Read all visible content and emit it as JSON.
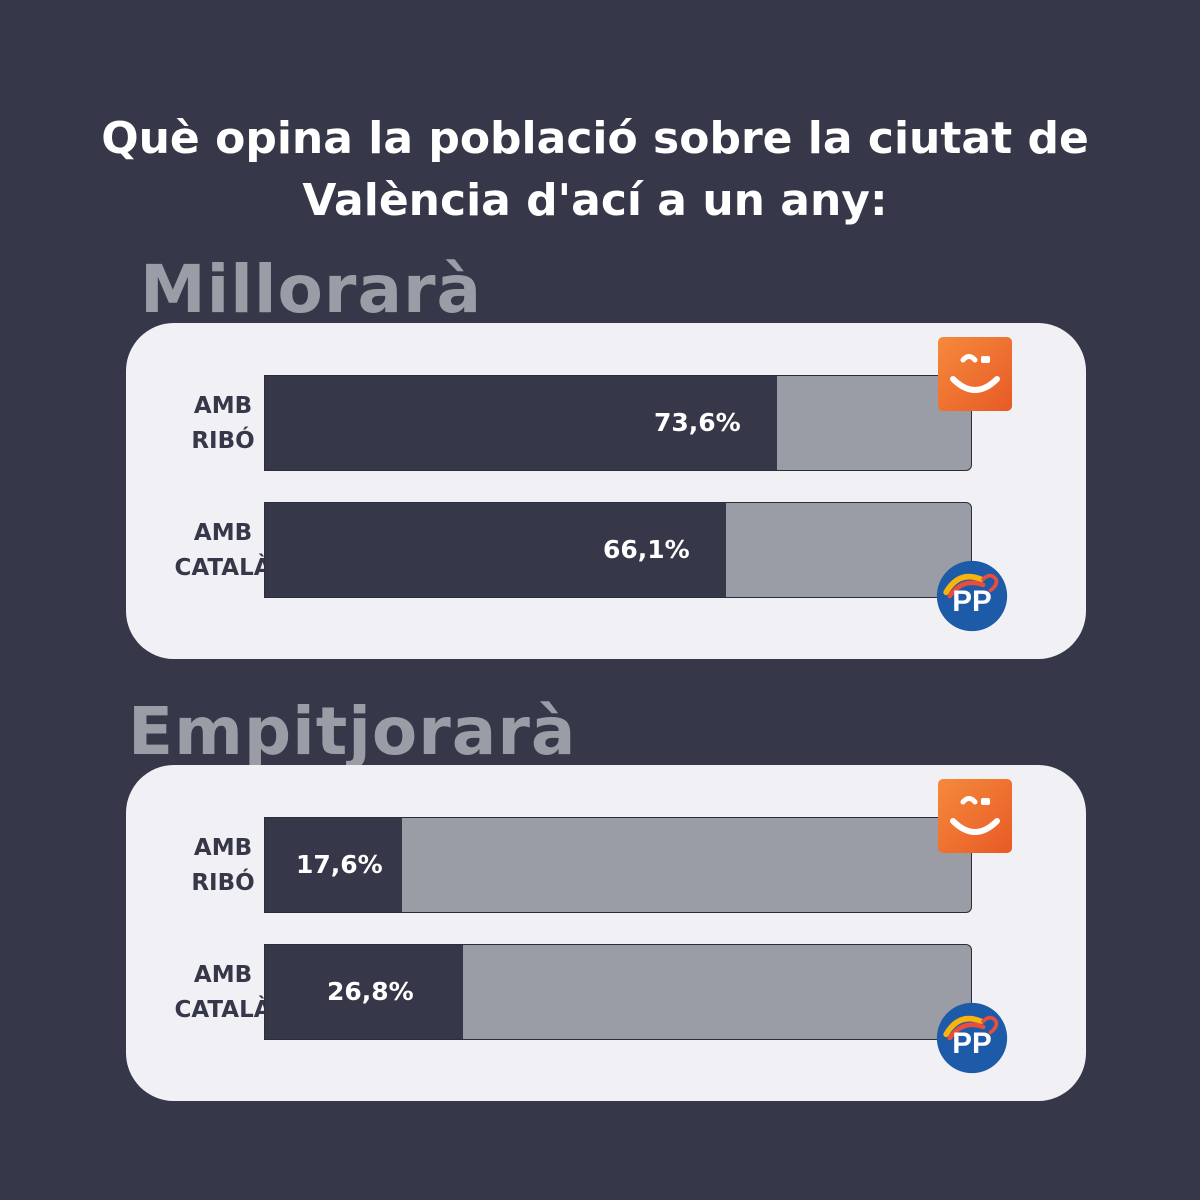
{
  "title": {
    "line1": "Què opina la població sobre la ciutat de",
    "line2": "València d'ací a un any:"
  },
  "chart_data": [
    {
      "type": "bar",
      "orientation": "horizontal",
      "title": "Millorarà",
      "categories": [
        [
          "AMB",
          "RIBÓ"
        ],
        [
          "AMB",
          "CATALÀ"
        ]
      ],
      "values": [
        73.6,
        66.1
      ],
      "value_labels": [
        "73,6%",
        "66,1%"
      ],
      "xlim": [
        0,
        100
      ],
      "logos": [
        "compromis-logo",
        "pp-logo"
      ]
    },
    {
      "type": "bar",
      "orientation": "horizontal",
      "title": "Empitjorarà",
      "categories": [
        [
          "AMB",
          "RIBÓ"
        ],
        [
          "AMB",
          "CATALÀ"
        ]
      ],
      "values": [
        17.6,
        26.8
      ],
      "value_labels": [
        "17,6%",
        "26,8%"
      ],
      "xlim": [
        0,
        100
      ],
      "logos": [
        "compromis-logo",
        "pp-logo"
      ]
    }
  ],
  "logos": {
    "pp_text": "PP"
  },
  "colors": {
    "background": "#363849",
    "panel": "#f1f1f5",
    "bar_fill": "#363849",
    "bar_track": "#9a9ca6",
    "compromis_orange": "#ef6c2f",
    "pp_blue": "#1d5ba8"
  }
}
